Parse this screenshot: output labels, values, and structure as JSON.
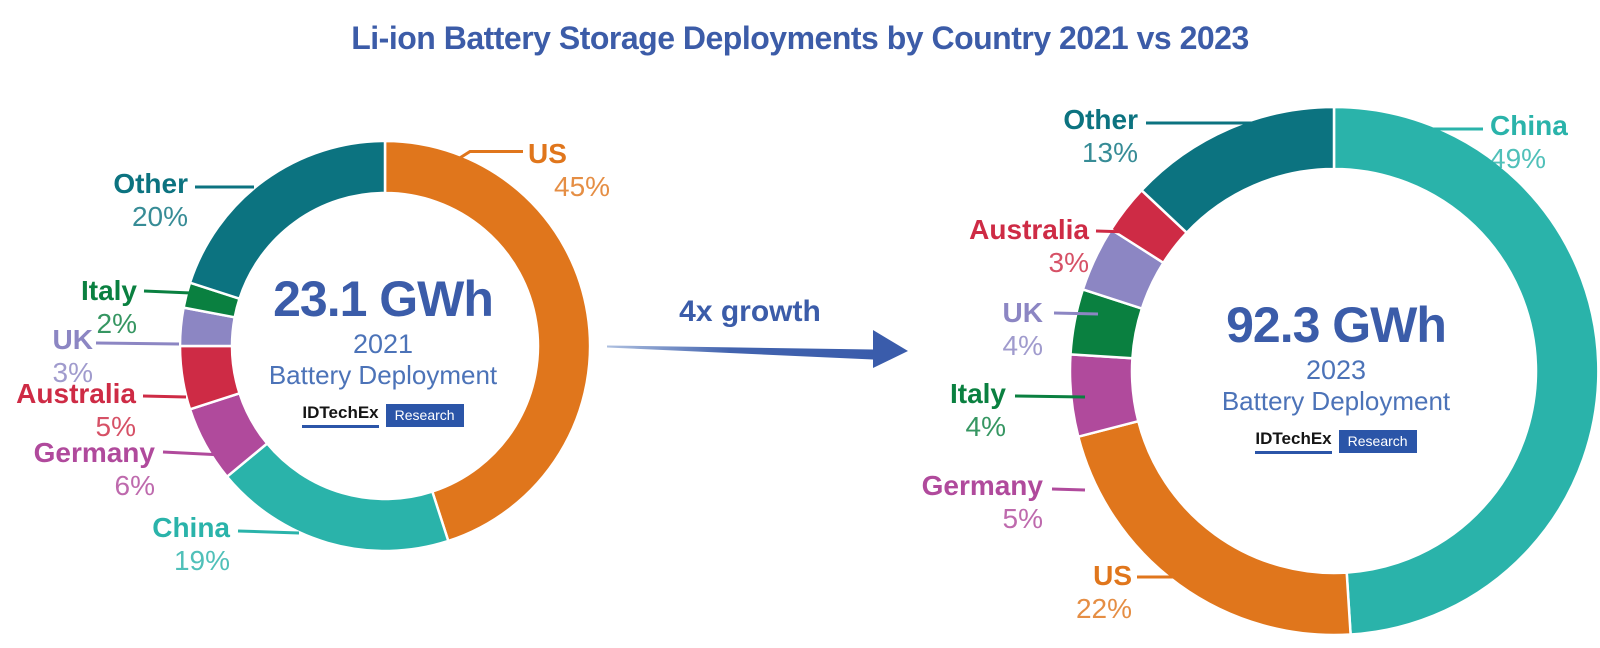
{
  "title": "Li-ion Battery Storage Deployments by Country 2021 vs 2023",
  "arrow": {
    "label": "4x growth",
    "color": "#3A5CAB"
  },
  "brand": {
    "name": "IDTechEx",
    "suffix": "Research"
  },
  "chart_data": [
    {
      "type": "pie",
      "variant": "donut",
      "title": "2021 Battery Deployment",
      "start_angle_deg": 0,
      "direction": "clockwise",
      "center": {
        "total": "23.1 GWh",
        "year": "2021",
        "caption": "Battery Deployment"
      },
      "slices": [
        {
          "label": "US",
          "value": 45,
          "pct_label": "45%",
          "color": "#E0761C"
        },
        {
          "label": "China",
          "value": 19,
          "pct_label": "19%",
          "color": "#2AB3AA"
        },
        {
          "label": "Germany",
          "value": 6,
          "pct_label": "6%",
          "color": "#B04A9C"
        },
        {
          "label": "Australia",
          "value": 5,
          "pct_label": "5%",
          "color": "#CE2B45"
        },
        {
          "label": "UK",
          "value": 3,
          "pct_label": "3%",
          "color": "#8C86C3"
        },
        {
          "label": "Italy",
          "value": 2,
          "pct_label": "2%",
          "color": "#0A8040"
        },
        {
          "label": "Other",
          "value": 20,
          "pct_label": "20%",
          "color": "#0C7380"
        }
      ]
    },
    {
      "type": "pie",
      "variant": "donut",
      "title": "2023 Battery Deployment",
      "start_angle_deg": 0,
      "direction": "clockwise",
      "center": {
        "total": "92.3 GWh",
        "year": "2023",
        "caption": "Battery Deployment"
      },
      "slices": [
        {
          "label": "China",
          "value": 49,
          "pct_label": "49%",
          "color": "#2AB3AA"
        },
        {
          "label": "US",
          "value": 22,
          "pct_label": "22%",
          "color": "#E0761C"
        },
        {
          "label": "Germany",
          "value": 5,
          "pct_label": "5%",
          "color": "#B04A9C"
        },
        {
          "label": "Italy",
          "value": 4,
          "pct_label": "4%",
          "color": "#0A8040"
        },
        {
          "label": "UK",
          "value": 4,
          "pct_label": "4%",
          "color": "#8C86C3"
        },
        {
          "label": "Australia",
          "value": 3,
          "pct_label": "3%",
          "color": "#CE2B45"
        },
        {
          "label": "Other",
          "value": 13,
          "pct_label": "13%",
          "color": "#0C7380"
        }
      ]
    }
  ]
}
